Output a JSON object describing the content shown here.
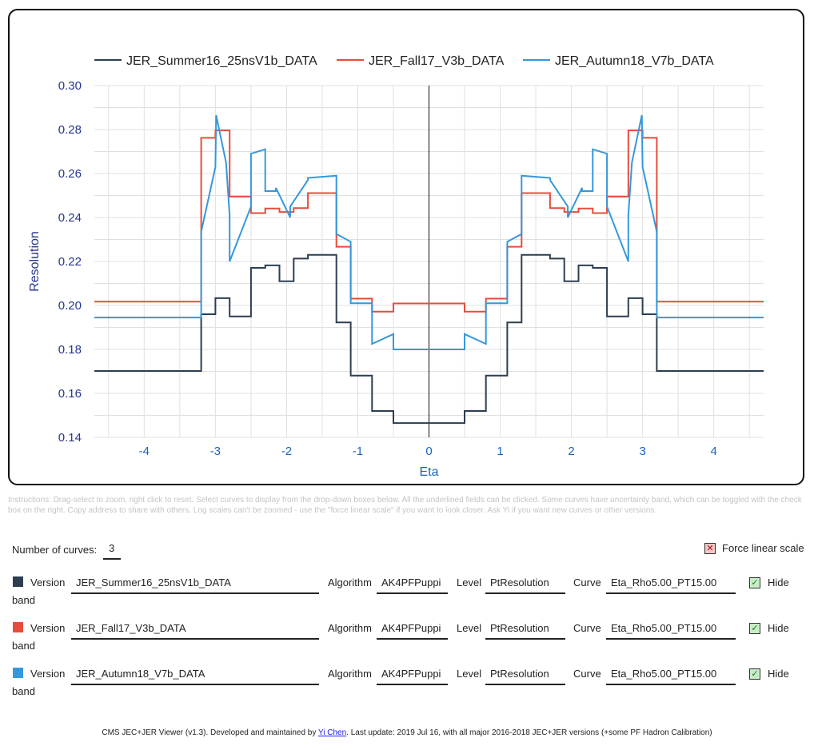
{
  "chart_data": {
    "type": "line",
    "title": "",
    "xlabel": "Eta",
    "ylabel": "Resolution",
    "xlim": [
      -4.7,
      4.7
    ],
    "ylim": [
      0.14,
      0.3
    ],
    "x_ticks": [
      "-4",
      "-3",
      "-2",
      "-1",
      "0",
      "1",
      "2",
      "3",
      "4"
    ],
    "y_ticks": [
      "0.14",
      "0.16",
      "0.18",
      "0.20",
      "0.22",
      "0.24",
      "0.26",
      "0.28",
      "0.30"
    ],
    "grid": true,
    "legend_position": "top",
    "series": [
      {
        "name": "JER_Summer16_25nsV1b_DATA",
        "color": "#2c3e50",
        "step": "post",
        "x": [
          -4.7,
          -3.2,
          -3.0,
          -2.8,
          -2.5,
          -2.3,
          -2.1,
          -1.9,
          -1.7,
          -1.3,
          -1.1,
          -0.8,
          -0.5,
          0.5,
          0.8,
          1.1,
          1.3,
          1.7,
          1.9,
          2.1,
          2.3,
          2.5,
          2.8,
          3.0,
          3.2,
          4.7
        ],
        "values": [
          0.1702,
          0.196,
          0.2033,
          0.195,
          0.2171,
          0.2182,
          0.211,
          0.2213,
          0.223,
          0.1923,
          0.1681,
          0.152,
          0.1465,
          0.152,
          0.1681,
          0.1923,
          0.223,
          0.2213,
          0.211,
          0.2182,
          0.2171,
          0.195,
          0.2033,
          0.196,
          0.1702,
          0.1702
        ]
      },
      {
        "name": "JER_Fall17_V3b_DATA",
        "color": "#e74c3c",
        "step": "post",
        "x": [
          -4.7,
          -3.2,
          -3.0,
          -2.8,
          -2.5,
          -2.3,
          -2.1,
          -1.9,
          -1.7,
          -1.3,
          -1.1,
          -0.8,
          -0.5,
          0.5,
          0.8,
          1.1,
          1.3,
          1.7,
          1.9,
          2.1,
          2.3,
          2.5,
          2.8,
          3.0,
          3.2,
          4.7
        ],
        "values": [
          0.2017,
          0.2762,
          0.2796,
          0.2495,
          0.242,
          0.2441,
          0.2425,
          0.2443,
          0.2511,
          0.2267,
          0.2031,
          0.1972,
          0.2009,
          0.1972,
          0.2031,
          0.2267,
          0.2511,
          0.2443,
          0.2425,
          0.2441,
          0.242,
          0.2495,
          0.2796,
          0.2762,
          0.2017,
          0.2017
        ]
      },
      {
        "name": "JER_Autumn18_V7b_DATA",
        "color": "#3498db",
        "step": "mixed",
        "points": [
          [
            -4.7,
            0.1945
          ],
          [
            -3.2,
            0.1945
          ],
          [
            -3.2,
            0.2335
          ],
          [
            -3.0,
            0.263
          ],
          [
            -2.99,
            0.2865
          ],
          [
            -2.85,
            0.265
          ],
          [
            -2.8,
            0.241
          ],
          [
            -2.8,
            0.22
          ],
          [
            -2.5,
            0.245
          ],
          [
            -2.5,
            0.269
          ],
          [
            -2.3,
            0.271
          ],
          [
            -2.3,
            0.252
          ],
          [
            -2.15,
            0.252
          ],
          [
            -2.15,
            0.2535
          ],
          [
            -1.95,
            0.24
          ],
          [
            -1.95,
            0.245
          ],
          [
            -1.7,
            0.257
          ],
          [
            -1.7,
            0.258
          ],
          [
            -1.3,
            0.259
          ],
          [
            -1.3,
            0.2325
          ],
          [
            -1.1,
            0.229
          ],
          [
            -1.1,
            0.201
          ],
          [
            -0.8,
            0.201
          ],
          [
            -0.8,
            0.1825
          ],
          [
            -0.5,
            0.187
          ],
          [
            -0.5,
            0.18
          ],
          [
            0.5,
            0.18
          ],
          [
            0.5,
            0.187
          ],
          [
            0.8,
            0.1825
          ],
          [
            0.8,
            0.201
          ],
          [
            1.1,
            0.201
          ],
          [
            1.1,
            0.229
          ],
          [
            1.3,
            0.2325
          ],
          [
            1.3,
            0.259
          ],
          [
            1.7,
            0.258
          ],
          [
            1.7,
            0.257
          ],
          [
            1.95,
            0.245
          ],
          [
            1.95,
            0.24
          ],
          [
            2.15,
            0.2535
          ],
          [
            2.15,
            0.252
          ],
          [
            2.3,
            0.252
          ],
          [
            2.3,
            0.271
          ],
          [
            2.5,
            0.269
          ],
          [
            2.5,
            0.245
          ],
          [
            2.8,
            0.22
          ],
          [
            2.8,
            0.241
          ],
          [
            2.85,
            0.265
          ],
          [
            2.99,
            0.2865
          ],
          [
            3.0,
            0.263
          ],
          [
            3.2,
            0.2335
          ],
          [
            3.2,
            0.1945
          ],
          [
            4.7,
            0.1945
          ]
        ]
      }
    ]
  },
  "instructions": "Instructions: Drag-select to zoom, right click to reset. Select curves to display from the drop-down boxes below. All the underlined fields can be clicked. Some curves have uncertainty band, which can be toggled with the check box on the right. Copy address to share with others. Log scales can't be zoomed - use the \"force linear scale\" if you want to look closer. Ask Yi if you want new curves or other versions.",
  "controls": {
    "num_curves_label": "Number of curves:",
    "num_curves_value": "3",
    "force_linear_label": "Force linear scale",
    "force_linear_mark": "✕",
    "version_label": "Version",
    "algorithm_label": "Algorithm",
    "level_label": "Level",
    "curve_label": "Curve",
    "hide_label": "Hide",
    "band_label": "band",
    "check_mark": "✓"
  },
  "curves": [
    {
      "color": "#2c3e50",
      "version": "JER_Summer16_25nsV1b_DATA",
      "algorithm": "AK4PFPuppi",
      "level": "PtResolution",
      "curve": "Eta_Rho5.00_PT15.00"
    },
    {
      "color": "#e74c3c",
      "version": "JER_Fall17_V3b_DATA",
      "algorithm": "AK4PFPuppi",
      "level": "PtResolution",
      "curve": "Eta_Rho5.00_PT15.00"
    },
    {
      "color": "#3498db",
      "version": "JER_Autumn18_V7b_DATA",
      "algorithm": "AK4PFPuppi",
      "level": "PtResolution",
      "curve": "Eta_Rho5.00_PT15.00"
    }
  ],
  "footer": {
    "prefix": "CMS JEC+JER Viewer (v1.3). Developed and maintained by ",
    "author": "Yi Chen",
    "suffix": ". Last update: 2019 Jul 16, with all major 2016-2018 JEC+JER versions (+some PF Hadron Calibration)"
  }
}
